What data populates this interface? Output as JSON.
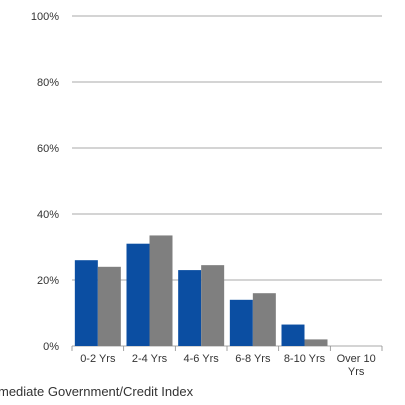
{
  "chart_data": {
    "type": "bar",
    "categories": [
      "0-2 Yrs",
      "2-4 Yrs",
      "4-6 Yrs",
      "6-8 Yrs",
      "8-10 Yrs",
      "Over 10 Yrs"
    ],
    "category_label_lines": [
      [
        "0-2 Yrs"
      ],
      [
        "2-4 Yrs"
      ],
      [
        "4-6 Yrs"
      ],
      [
        "6-8 Yrs"
      ],
      [
        "8-10 Yrs"
      ],
      [
        "Over 10",
        "Yrs"
      ]
    ],
    "series": [
      {
        "values": [
          26,
          31,
          23,
          14,
          6.5,
          0
        ],
        "color": "#0b4ea2"
      },
      {
        "values": [
          24,
          33.5,
          24.5,
          16,
          2,
          0
        ],
        "color": "#7f7f7f"
      }
    ],
    "ylim": [
      0,
      100
    ],
    "yticks": [
      0,
      20,
      40,
      60,
      80,
      100
    ],
    "ytick_labels": [
      "0%",
      "20%",
      "40%",
      "60%",
      "80%",
      "100%"
    ],
    "grid": true,
    "gridline_color": "#8c8c8c"
  },
  "caption_text": "mediate Government/Credit Index"
}
